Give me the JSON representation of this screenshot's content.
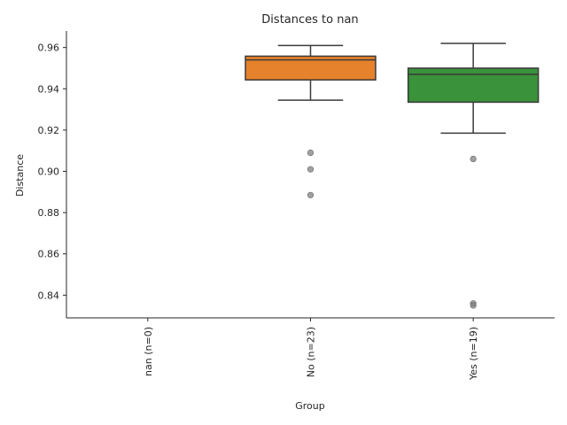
{
  "chart_data": {
    "type": "box",
    "title": "Distances to nan",
    "xlabel": "Group",
    "ylabel": "Distance",
    "ylim": [
      0.829,
      0.968
    ],
    "yticks": [
      "0.84",
      "0.86",
      "0.88",
      "0.90",
      "0.92",
      "0.94",
      "0.96"
    ],
    "ytick_values": [
      0.84,
      0.86,
      0.88,
      0.9,
      0.92,
      0.94,
      0.96
    ],
    "categories": [
      "nan (n=0)",
      "No (n=23)",
      "Yes (n=19)"
    ],
    "x_tick_rotation": "vertical",
    "grid": false,
    "legend": "none",
    "series": [
      {
        "category": "nan (n=0)",
        "color": "#1f77b4",
        "stats": null,
        "outliers": []
      },
      {
        "category": "No (n=23)",
        "color": "#e6822b",
        "stats": {
          "whisker_low": 0.9345,
          "q1": 0.9443,
          "median": 0.954,
          "q3": 0.9558,
          "whisker_high": 0.961
        },
        "outliers": [
          0.909,
          0.901,
          0.8885
        ]
      },
      {
        "category": "Yes (n=19)",
        "color": "#3a923a",
        "stats": {
          "whisker_low": 0.9185,
          "q1": 0.9335,
          "median": 0.947,
          "q3": 0.95,
          "whisker_high": 0.962
        },
        "outliers": [
          0.906,
          0.836,
          0.835
        ]
      }
    ]
  }
}
